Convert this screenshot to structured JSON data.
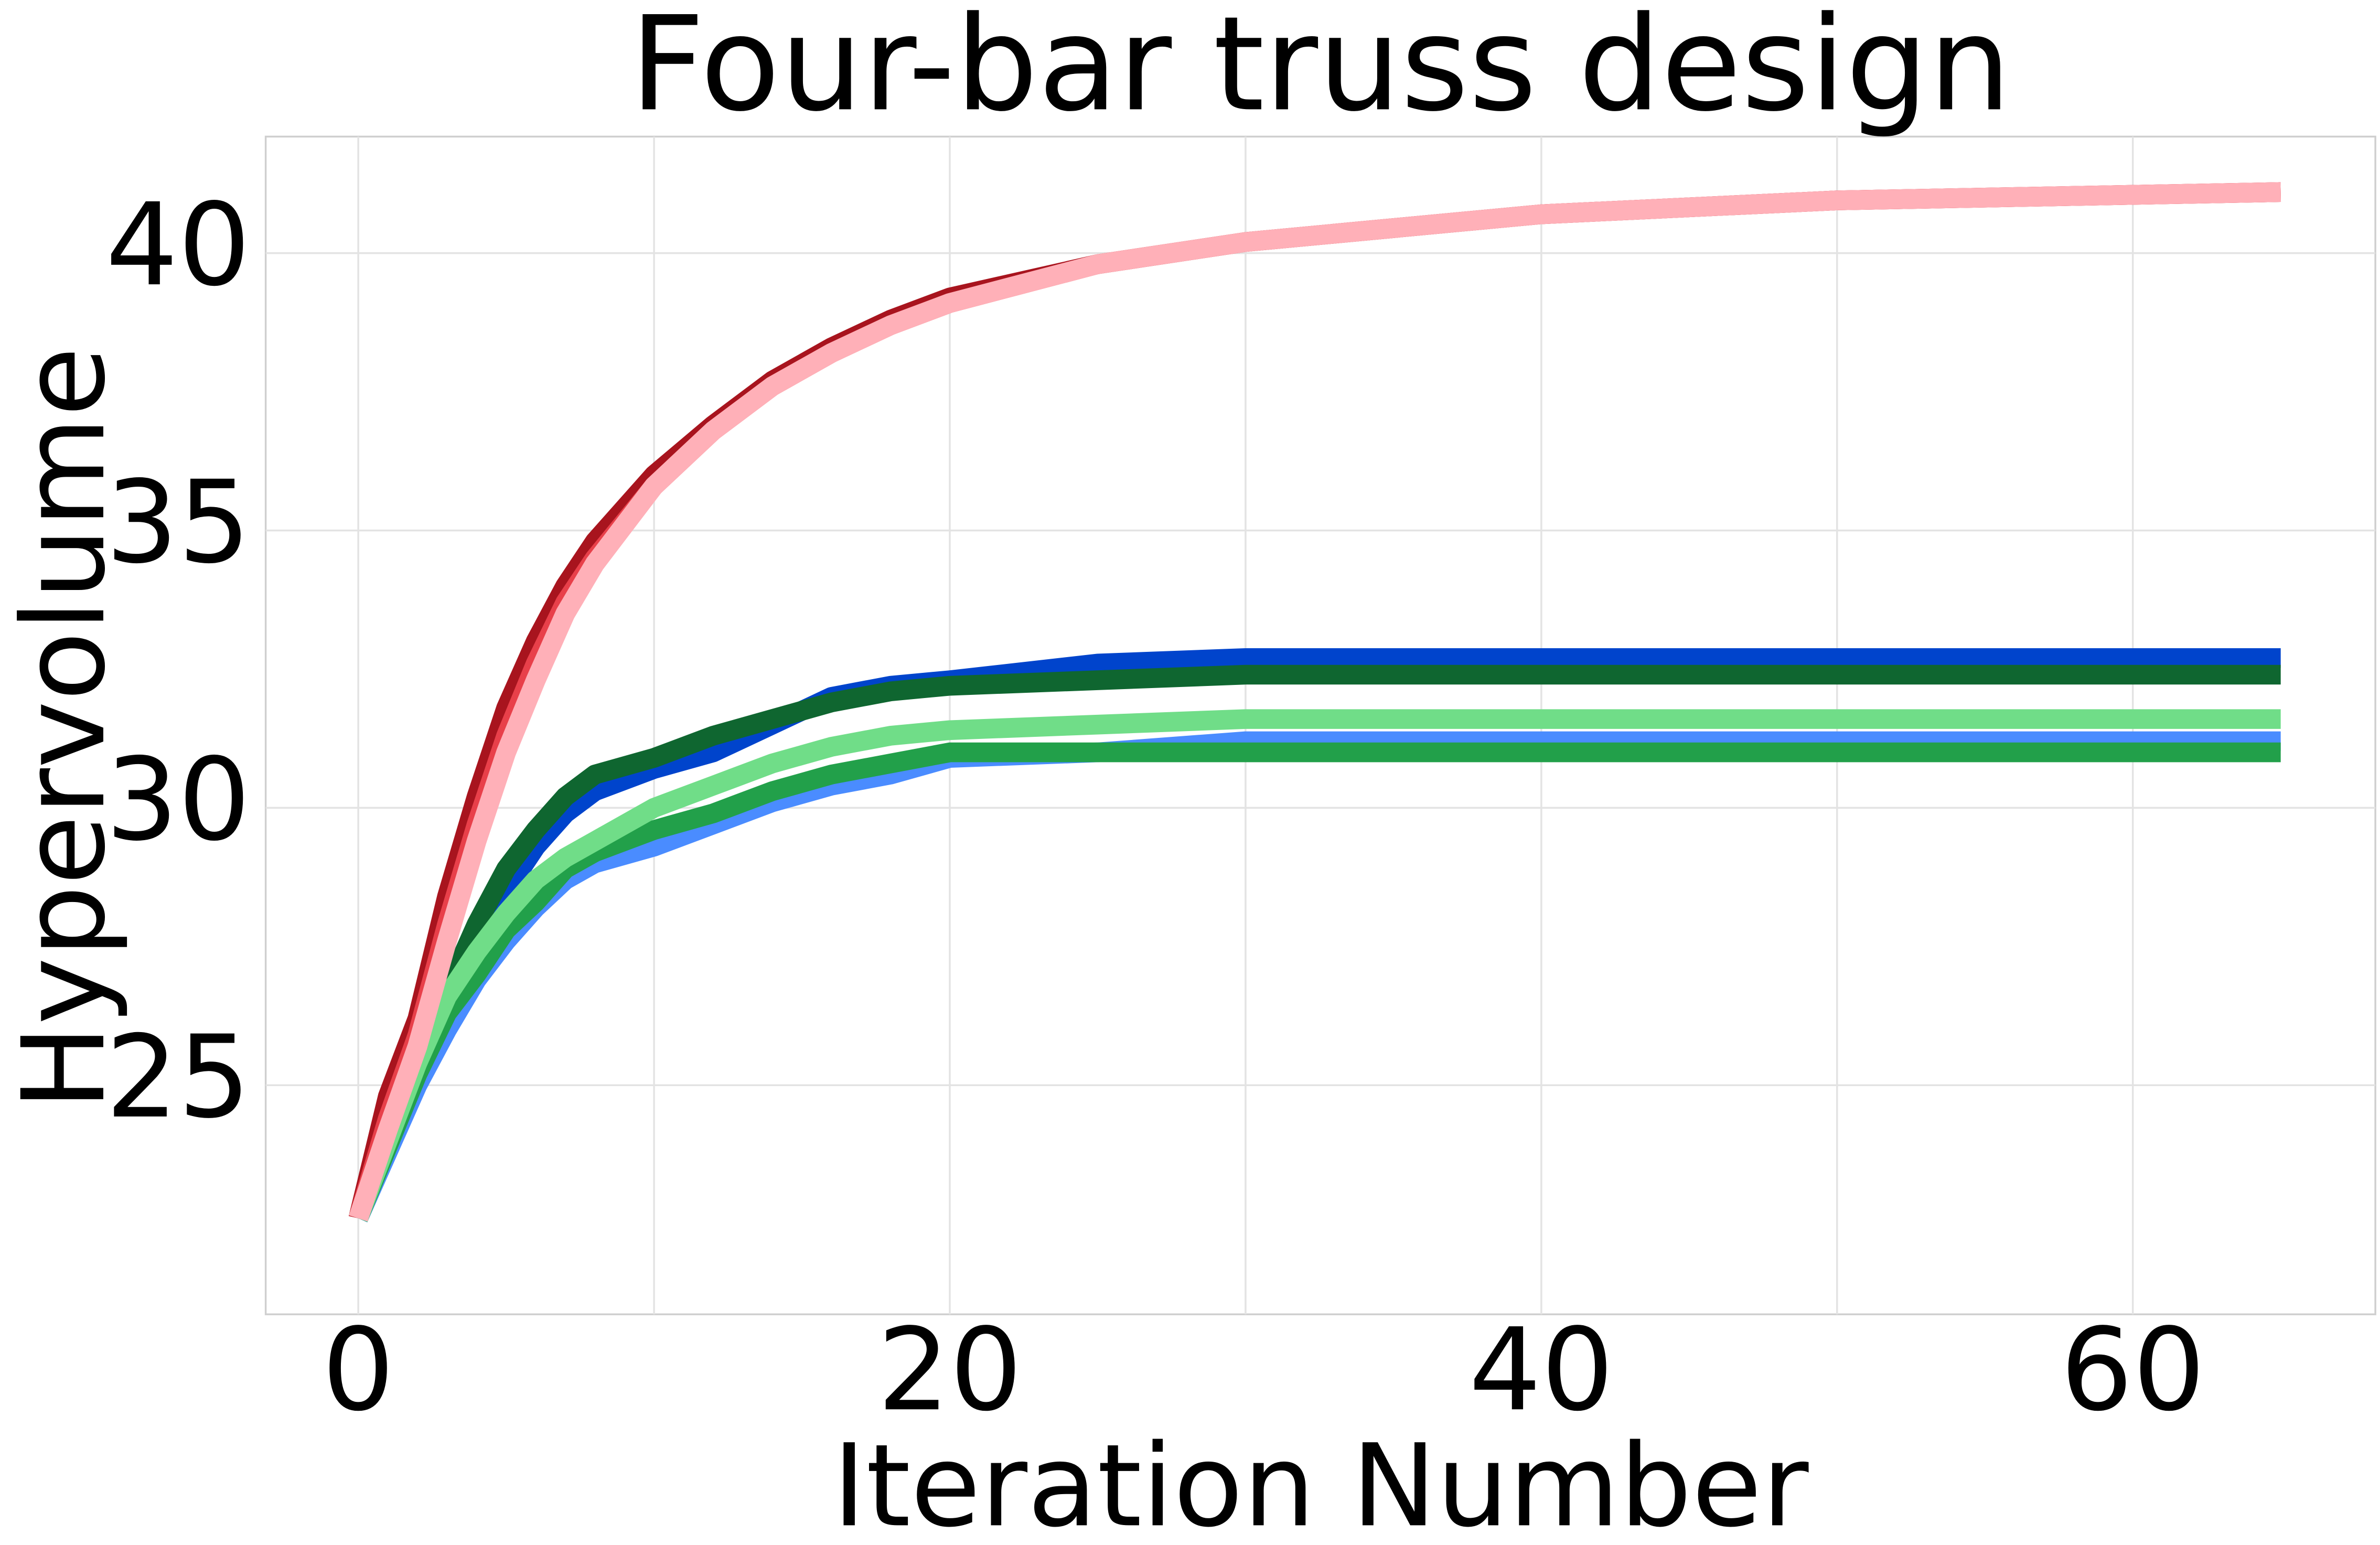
{
  "chart_data": {
    "type": "line",
    "title": "Four-bar truss design",
    "xlabel": "Iteration Number",
    "ylabel": "Hypervolume",
    "x": [
      0,
      1,
      2,
      3,
      4,
      5,
      6,
      7,
      8,
      10,
      12,
      14,
      16,
      18,
      20,
      25,
      30,
      40,
      50,
      65
    ],
    "series": [
      {
        "color": "#a8141e",
        "values": [
          22.6,
          24.8,
          26.2,
          28.4,
          30.2,
          31.8,
          33.0,
          34.0,
          34.8,
          36.0,
          36.9,
          37.7,
          38.3,
          38.8,
          39.2,
          39.8,
          40.2,
          40.7,
          40.95,
          41.1
        ]
      },
      {
        "color": "#e8404a",
        "values": [
          22.6,
          24.4,
          25.9,
          27.9,
          29.7,
          31.3,
          32.6,
          33.7,
          34.5,
          35.8,
          36.8,
          37.6,
          38.2,
          38.7,
          39.1,
          39.8,
          40.2,
          40.7,
          40.95,
          41.1
        ]
      },
      {
        "color": "#0044cc",
        "values": [
          22.6,
          24.0,
          25.3,
          26.5,
          27.5,
          28.5,
          29.3,
          29.9,
          30.3,
          30.7,
          31.0,
          31.5,
          32.0,
          32.2,
          32.3,
          32.6,
          32.7,
          32.7,
          32.7,
          32.7
        ]
      },
      {
        "color": "#4a8cff",
        "values": [
          22.6,
          23.8,
          25.0,
          26.0,
          26.9,
          27.6,
          28.2,
          28.7,
          29.0,
          29.3,
          29.7,
          30.1,
          30.4,
          30.6,
          30.9,
          31.0,
          31.2,
          31.2,
          31.2,
          31.2
        ]
      },
      {
        "color": "#0f6630",
        "values": [
          22.6,
          24.0,
          25.4,
          26.7,
          27.9,
          28.9,
          29.6,
          30.2,
          30.6,
          30.9,
          31.3,
          31.6,
          31.9,
          32.1,
          32.2,
          32.3,
          32.4,
          32.4,
          32.4,
          32.4
        ]
      },
      {
        "color": "#22a04a",
        "values": [
          22.6,
          23.9,
          25.2,
          26.3,
          27.0,
          27.8,
          28.3,
          28.9,
          29.2,
          29.6,
          29.9,
          30.3,
          30.6,
          30.8,
          31.0,
          31.0,
          31.0,
          31.0,
          31.0,
          31.0
        ]
      },
      {
        "color": "#70dd88",
        "values": [
          22.6,
          24.0,
          25.4,
          26.6,
          27.4,
          28.1,
          28.7,
          29.1,
          29.4,
          30.0,
          30.4,
          30.8,
          31.1,
          31.3,
          31.4,
          31.5,
          31.6,
          31.6,
          31.6,
          31.6
        ]
      },
      {
        "color": "#ffb0b8",
        "values": [
          22.6,
          24.2,
          25.7,
          27.6,
          29.4,
          31.0,
          32.3,
          33.5,
          34.4,
          35.8,
          36.8,
          37.6,
          38.2,
          38.7,
          39.1,
          39.8,
          40.2,
          40.7,
          40.95,
          41.1
        ]
      }
    ],
    "xlim": [
      -3.13,
      68.2
    ],
    "ylim": [
      20.87,
      42.1
    ],
    "xticks": [
      0,
      20,
      40,
      60
    ],
    "xminorticks": [
      10,
      30,
      50
    ],
    "yticks": [
      25,
      30,
      35,
      40
    ],
    "grid": true
  }
}
